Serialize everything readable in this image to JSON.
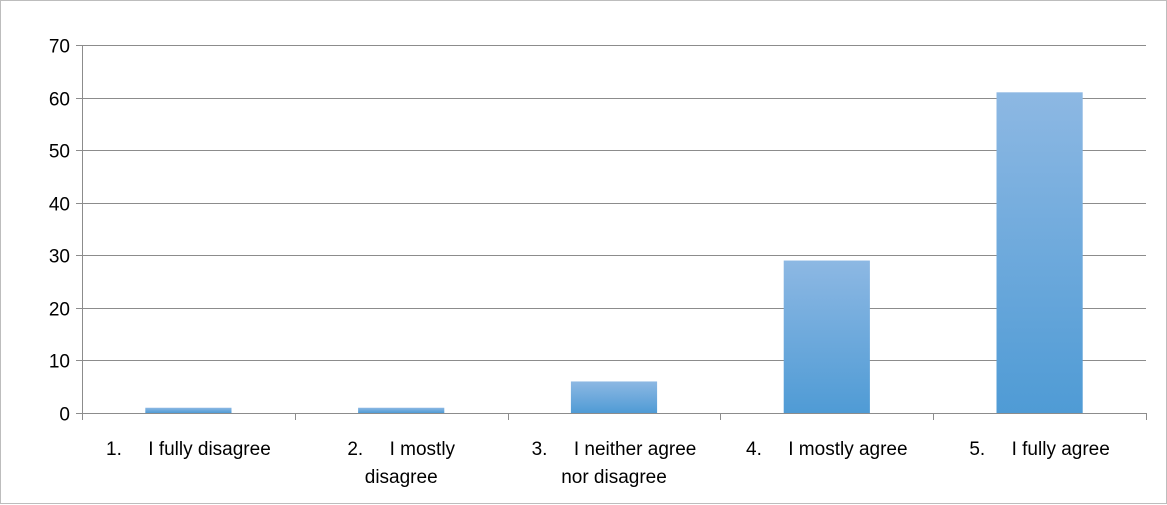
{
  "chart_data": {
    "type": "bar",
    "categories": [
      [
        "1.     I fully disagree"
      ],
      [
        "2.     I mostly",
        "disagree"
      ],
      [
        "3.     I neither agree",
        "nor disagree"
      ],
      [
        "4.     I mostly agree"
      ],
      [
        "5.     I fully agree"
      ]
    ],
    "values": [
      1,
      1,
      6,
      29,
      61
    ],
    "ylim": [
      0,
      70
    ],
    "yticks": [
      0,
      10,
      20,
      30,
      40,
      50,
      60,
      70
    ],
    "grid": true,
    "legend": "none",
    "bar_color_top": "#8db8e3",
    "bar_color_bottom": "#4f9bd5",
    "gridline_color": "#8c8c8c",
    "title": "",
    "xlabel": "",
    "ylabel": ""
  }
}
